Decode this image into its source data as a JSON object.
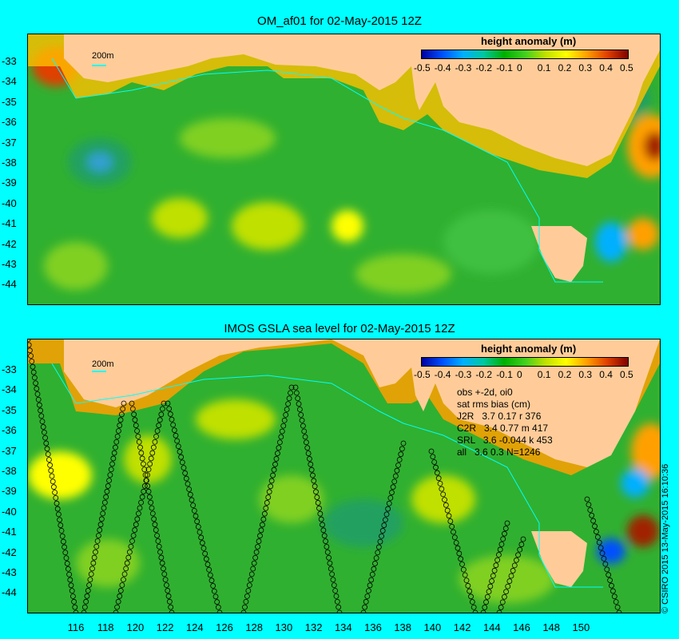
{
  "top_panel": {
    "title": "OM_af01 for 02-May-2015 12Z",
    "colorbar_title": "height anomaly (m)",
    "contour_label": "200m"
  },
  "bottom_panel": {
    "title": "IMOS GSLA sea level  for 02-May-2015 12Z",
    "colorbar_title": "height anomaly (m)",
    "contour_label": "200m",
    "stats": [
      "obs +-2d, oi0",
      "sat rms bias (cm)",
      "J2R   3.7 0.17 r 376",
      "C2R   3.4 0.77 m 417",
      "SRL   3.6 -0.044 k 453",
      "all   3.6 0.3 N=1246"
    ]
  },
  "colorbar_ticks": [
    "-0.5",
    "-0.4",
    "-0.3",
    "-0.2",
    "-0.1",
    "0",
    "0.1",
    "0.2",
    "0.3",
    "0.4",
    "0.5"
  ],
  "colorbar_colors": [
    "#0000a0",
    "#0050ff",
    "#00b0ff",
    "#00c8a0",
    "#00b000",
    "#40d020",
    "#c0e000",
    "#ffff00",
    "#ffa000",
    "#e04000",
    "#800000"
  ],
  "lat_labels": [
    "-33",
    "-34",
    "-35",
    "-36",
    "-37",
    "-38",
    "-39",
    "-40",
    "-41",
    "-42",
    "-43",
    "-44"
  ],
  "lon_labels": [
    "116",
    "118",
    "120",
    "122",
    "124",
    "126",
    "128",
    "130",
    "132",
    "134",
    "136",
    "138",
    "140",
    "142",
    "144",
    "146",
    "148",
    "150"
  ],
  "copyright": "© CSIRO 2015  13-May-2015 16:10:36",
  "colors": {
    "land": "#ffcc99",
    "ocean_base": "#30b030",
    "background": "#00ffff"
  }
}
